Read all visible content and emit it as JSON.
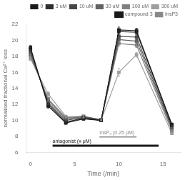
{
  "chart_data": {
    "type": "line",
    "xlabel": "Time (/min)",
    "ylabel": "normalised fractional Ca²⁺ loss",
    "xlim": [
      -0.5,
      17
    ],
    "ylim": [
      6,
      22
    ],
    "xticks": [
      0,
      5,
      10,
      15
    ],
    "yticks": [
      6,
      8,
      10,
      12,
      14,
      16,
      18,
      20,
      22
    ],
    "grid": false,
    "legend": "upper right",
    "x": [
      0,
      2,
      4,
      6,
      8,
      10,
      12,
      16
    ],
    "series": [
      {
        "name": "0",
        "color": "#1a1a1a",
        "marker": "square",
        "values": [
          19.1,
          11.8,
          9.7,
          10.2,
          10.0,
          21.3,
          21.2,
          9.5
        ],
        "errors": [
          0.25,
          0.25,
          0.15,
          0.15,
          0.1,
          0.35,
          0.3,
          0.2
        ]
      },
      {
        "name": "3 uM",
        "color": "#2e2e2e",
        "marker": "square",
        "values": [
          18.9,
          12.0,
          9.8,
          10.3,
          10.0,
          21.1,
          21.0,
          9.4
        ],
        "errors": [
          0.2,
          0.2,
          0.15,
          0.15,
          0.1,
          0.3,
          0.3,
          0.15
        ]
      },
      {
        "name": "10 uM",
        "color": "#474747",
        "marker": "square",
        "values": [
          18.6,
          12.2,
          10.0,
          10.4,
          10.0,
          20.5,
          20.4,
          9.2
        ],
        "errors": [
          0.2,
          0.2,
          0.15,
          0.15,
          0.1,
          0.3,
          0.3,
          0.15
        ]
      },
      {
        "name": "30 uM",
        "color": "#636363",
        "marker": "square",
        "values": [
          18.3,
          12.5,
          10.2,
          10.5,
          10.1,
          20.1,
          19.9,
          9.0
        ],
        "errors": [
          0.2,
          0.2,
          0.15,
          0.15,
          0.1,
          0.3,
          0.3,
          0.15
        ]
      },
      {
        "name": "100 uM",
        "color": "#808080",
        "marker": "square",
        "values": [
          18.0,
          12.7,
          10.35,
          10.5,
          10.1,
          19.6,
          19.4,
          8.7
        ],
        "errors": [
          0.2,
          0.2,
          0.15,
          0.15,
          0.1,
          0.3,
          0.3,
          0.15
        ]
      },
      {
        "name": "300 uM",
        "color": "#9e9e9e",
        "marker": "square",
        "values": [
          17.7,
          13.3,
          10.5,
          10.5,
          10.05,
          16.0,
          18.2,
          8.4
        ],
        "errors": [
          0.2,
          0.3,
          0.15,
          0.15,
          0.1,
          0.5,
          0.3,
          0.15
        ]
      },
      {
        "name": "compound 3",
        "color": "#1a1a1a",
        "line_style": "thick",
        "x": [
          2.5,
          14.5
        ],
        "values": [
          6.85,
          6.85
        ],
        "annotation": "antagonist (x μM)"
      },
      {
        "name": "InsP3",
        "color": "#888888",
        "line_style": "thin",
        "x": [
          7.8,
          12.0
        ],
        "values": [
          7.95,
          7.95
        ],
        "annotation": "InsP₃ (0.25 μM)"
      }
    ]
  }
}
